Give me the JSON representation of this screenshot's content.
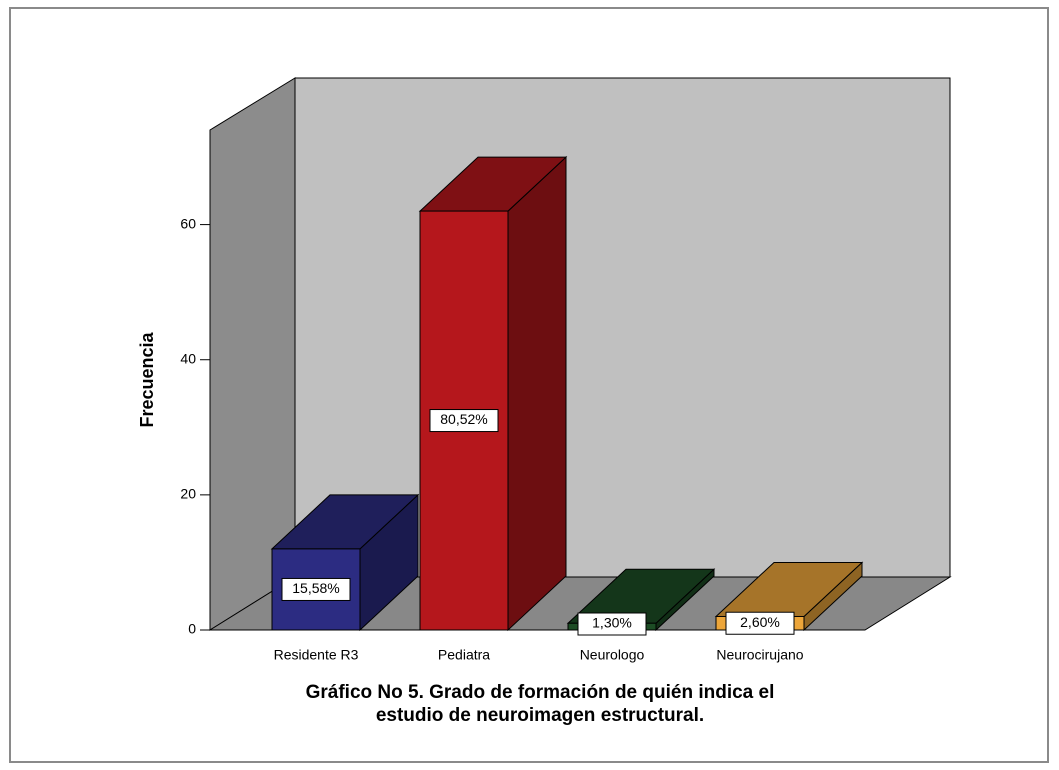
{
  "chart_data": {
    "type": "bar3d",
    "title": "Gráfico No 5. Grado de formación de quién indica el",
    "subtitle": "estudio de neuroimagen estructural.",
    "y_label": "Frecuencia",
    "categories": [
      "Residente R3",
      "Pediatra",
      "Neurologo",
      "Neurocirujano"
    ],
    "values": [
      12,
      62,
      1,
      2
    ],
    "data_labels": [
      "15,58%",
      "80,52%",
      "1,30%",
      "2,60%"
    ],
    "colors": [
      "#2c2c82",
      "#b5171c",
      "#1d4d25",
      "#eda63a"
    ],
    "ylim": [
      0,
      74
    ],
    "yticks": [
      0,
      20,
      40,
      60
    ]
  }
}
